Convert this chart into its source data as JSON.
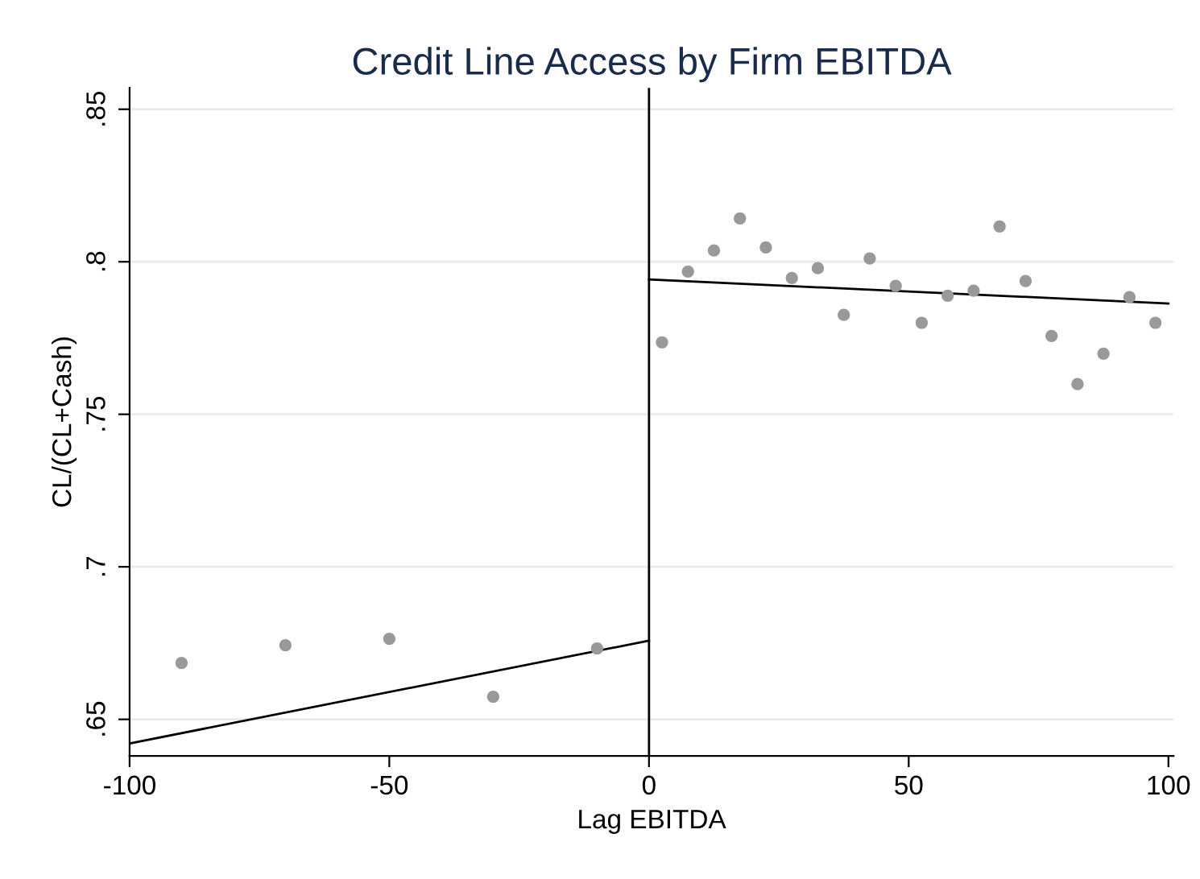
{
  "chart_data": {
    "type": "scatter",
    "title": "Credit Line Access by Firm EBITDA",
    "xlabel": "Lag EBITDA",
    "ylabel": "CL/(CL+Cash)",
    "xlim": [
      -100,
      101
    ],
    "ylim": [
      0.638,
      0.857
    ],
    "xticks": [
      -100,
      -50,
      0,
      50,
      100
    ],
    "yticks": [
      {
        "value": 0.65,
        "label": ".65"
      },
      {
        "value": 0.7,
        "label": ".7"
      },
      {
        "value": 0.75,
        "label": ".75"
      },
      {
        "value": 0.8,
        "label": ".8"
      },
      {
        "value": 0.85,
        "label": ".85"
      }
    ],
    "grid": "y",
    "legend": false,
    "ref_lines": [
      {
        "axis": "x",
        "value": 0,
        "color": "#000000"
      }
    ],
    "series": [
      {
        "marker": "circle",
        "color": "#999999",
        "x": [
          -90,
          -70,
          -50,
          -30,
          -10
        ],
        "values": [
          0.6685,
          0.6743,
          0.6764,
          0.6574,
          0.6732
        ]
      },
      {
        "marker": "circle",
        "color": "#999999",
        "x": [
          2.5,
          7.5,
          12.5,
          17.5,
          22.5,
          27.5,
          32.5,
          37.5,
          42.5,
          47.5,
          52.5,
          57.5,
          62.5,
          67.5,
          72.5,
          77.5,
          82.5,
          87.5,
          92.5,
          97.5
        ],
        "values": [
          0.7736,
          0.7968,
          0.8037,
          0.8142,
          0.8047,
          0.7947,
          0.7979,
          0.7826,
          0.8011,
          0.7921,
          0.78,
          0.7889,
          0.7905,
          0.8116,
          0.7937,
          0.7757,
          0.7599,
          0.7699,
          0.7884,
          0.78
        ]
      },
      {
        "type": "line",
        "color": "#000000",
        "x": [
          -100,
          0
        ],
        "values": [
          0.6421,
          0.6758
        ]
      },
      {
        "type": "line",
        "color": "#000000",
        "x": [
          0,
          100
        ],
        "values": [
          0.7942,
          0.7863
        ]
      }
    ]
  }
}
